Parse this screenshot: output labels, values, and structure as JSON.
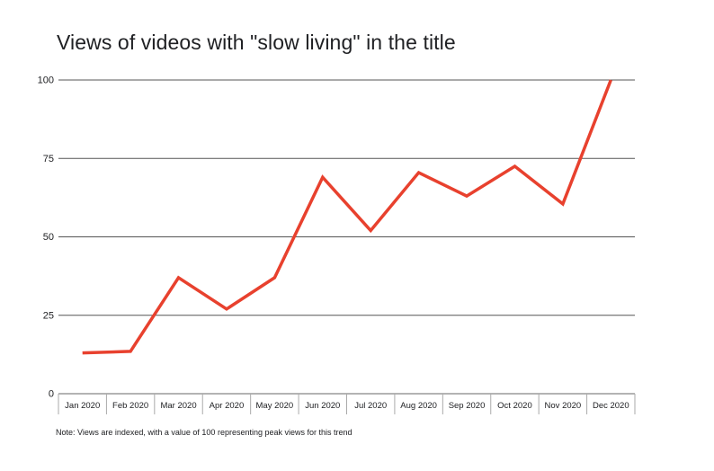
{
  "chart_data": {
    "type": "line",
    "title": "Views of videos with \"slow living\" in the title",
    "categories": [
      "Jan 2020",
      "Feb 2020",
      "Mar 2020",
      "Apr 2020",
      "May 2020",
      "Jun 2020",
      "Jul 2020",
      "Aug 2020",
      "Sep 2020",
      "Oct 2020",
      "Nov 2020",
      "Dec 2020"
    ],
    "series": [
      {
        "values": [
          13,
          13.5,
          37,
          27,
          37,
          69,
          52,
          70.5,
          63,
          72.5,
          60.5,
          100
        ],
        "color": "#e8412e"
      }
    ],
    "y_ticks": [
      "0",
      "25",
      "50",
      "75",
      "100"
    ],
    "ylim": [
      0,
      100
    ],
    "xlabel": "",
    "ylabel": "",
    "grid": true,
    "note": "Note: Views are indexed, with a value of 100 representing peak views for this trend"
  }
}
